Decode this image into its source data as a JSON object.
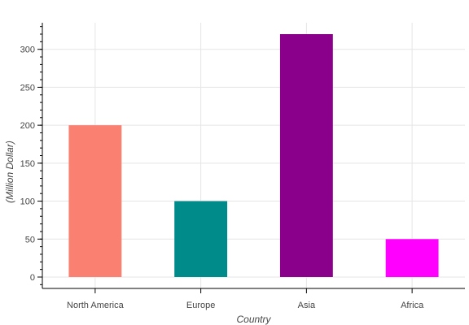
{
  "chart_data": {
    "type": "bar",
    "title": "",
    "xlabel": "Country",
    "ylabel": "(Million Dollar)",
    "categories": [
      "North America",
      "Europe",
      "Asia",
      "Africa"
    ],
    "values": [
      200,
      100,
      320,
      50
    ],
    "colors": [
      "#fa8072",
      "#008b8b",
      "#8b008b",
      "#ff00ff"
    ],
    "ylim": [
      -15,
      335
    ],
    "yticks": [
      0,
      50,
      100,
      150,
      200,
      250,
      300
    ],
    "yticks_minor_step": 10,
    "grid": true,
    "legend": "none"
  }
}
